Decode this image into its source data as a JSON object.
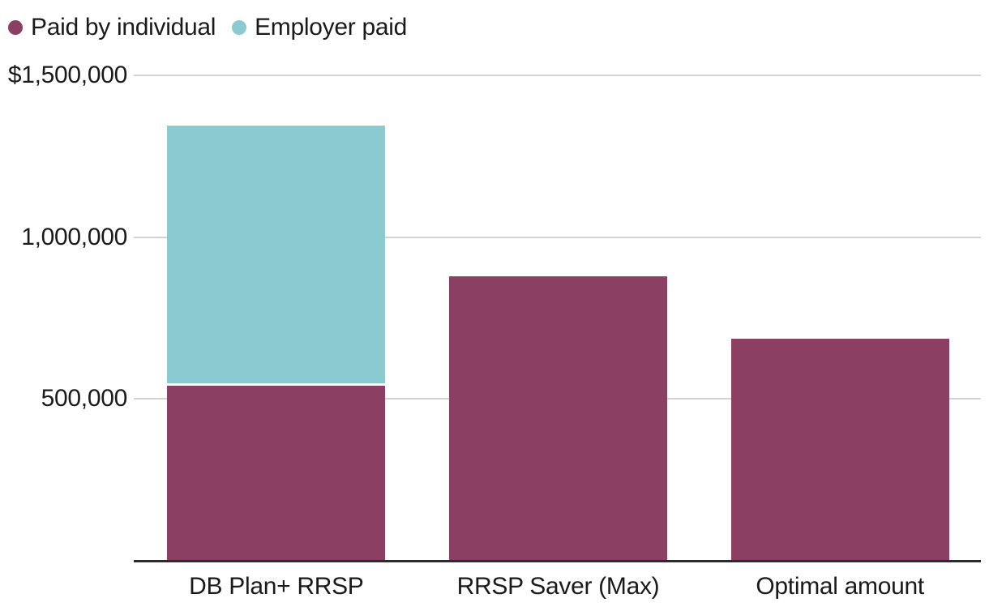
{
  "chart_data": {
    "type": "bar",
    "stacked": true,
    "title": "",
    "xlabel": "",
    "ylabel": "",
    "categories": [
      "DB Plan+ RRSP",
      "RRSP Saver (Max)",
      "Optimal amount"
    ],
    "series": [
      {
        "name": "Paid by individual",
        "color": "#8B3F63",
        "values": [
          540000,
          880000,
          685000
        ]
      },
      {
        "name": "Employer paid",
        "color": "#8CCAD2",
        "values": [
          805000,
          0,
          0
        ]
      }
    ],
    "totals": [
      1345000,
      880000,
      685000
    ],
    "yticks": [
      {
        "value": 1500000,
        "label": "$1,500,000"
      },
      {
        "value": 1000000,
        "label": "1,000,000"
      },
      {
        "value": 500000,
        "label": "500,000"
      }
    ],
    "ylim": [
      0,
      1500000
    ],
    "grid": true,
    "legend_position": "top-left"
  },
  "style": {
    "background": "#FFFFFF",
    "text_color": "#1A1A1A",
    "gridline_color": "#D2D2D2",
    "axis_line_color": "#2B2B2B",
    "segment_separator_color": "#FFFFFF"
  }
}
